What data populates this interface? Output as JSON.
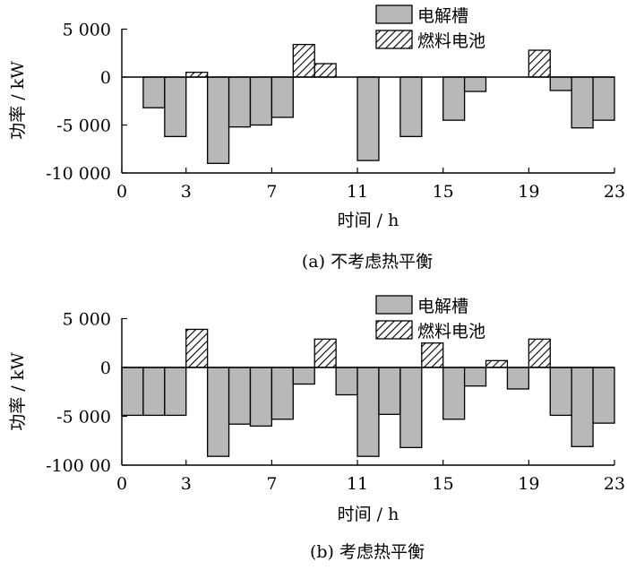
{
  "legend": {
    "electrolyzer": "电解槽",
    "fuel_cell": "燃料电池"
  },
  "colors": {
    "electrolyzer": "#b8b8b8",
    "fuel_cell": "#ffffff",
    "stroke": "#000000"
  },
  "chart_data": [
    {
      "type": "bar",
      "caption": "(a)  不考虑热平衡",
      "xlabel": "时间 / h",
      "ylabel": "功率 / kW",
      "xlim": [
        0,
        23
      ],
      "ylim": [
        -10000,
        5000
      ],
      "xticks": [
        0,
        3,
        7,
        11,
        15,
        19,
        23
      ],
      "yticks": [
        5000,
        0,
        -5000,
        -10000
      ],
      "ytick_labels": [
        "5 000",
        "0",
        "-5 000",
        "-10 000"
      ],
      "legend": [
        "电解槽",
        "燃料电池"
      ],
      "series": [
        {
          "name": "电解槽",
          "x": [
            2,
            3,
            5,
            6,
            7,
            8,
            12,
            14,
            16,
            17,
            21,
            22,
            23
          ],
          "values": [
            -3200,
            -6200,
            -9000,
            -5200,
            -5000,
            -4200,
            -8700,
            -6200,
            -4500,
            -1500,
            -1400,
            -5300,
            -4500
          ]
        },
        {
          "name": "燃料电池",
          "x": [
            4,
            9,
            10,
            20
          ],
          "values": [
            500,
            3400,
            1400,
            2800
          ]
        }
      ]
    },
    {
      "type": "bar",
      "caption": "(b)  考虑热平衡",
      "xlabel": "时间 / h",
      "ylabel": "功率 / kW",
      "xlim": [
        0,
        23
      ],
      "ylim": [
        -10000,
        5000
      ],
      "xticks": [
        0,
        3,
        7,
        11,
        15,
        19,
        23
      ],
      "yticks": [
        5000,
        0,
        -5000,
        -10000
      ],
      "ytick_labels": [
        "5 000",
        "0",
        "-5 000",
        "-100 00"
      ],
      "legend": [
        "电解槽",
        "燃料电池"
      ],
      "series": [
        {
          "name": "电解槽",
          "x": [
            1,
            2,
            3,
            5,
            6,
            7,
            8,
            9,
            11,
            12,
            13,
            14,
            16,
            17,
            19,
            21,
            22,
            23
          ],
          "values": [
            -4900,
            -4900,
            -4900,
            -9100,
            -5800,
            -6000,
            -5300,
            -1700,
            -2800,
            -9100,
            -4800,
            -8200,
            -5300,
            -1900,
            -2200,
            -4900,
            -8100,
            -5700
          ]
        },
        {
          "name": "燃料电池",
          "x": [
            4,
            10,
            15,
            18,
            20
          ],
          "values": [
            3900,
            2900,
            2500,
            700,
            2900
          ]
        }
      ]
    }
  ]
}
